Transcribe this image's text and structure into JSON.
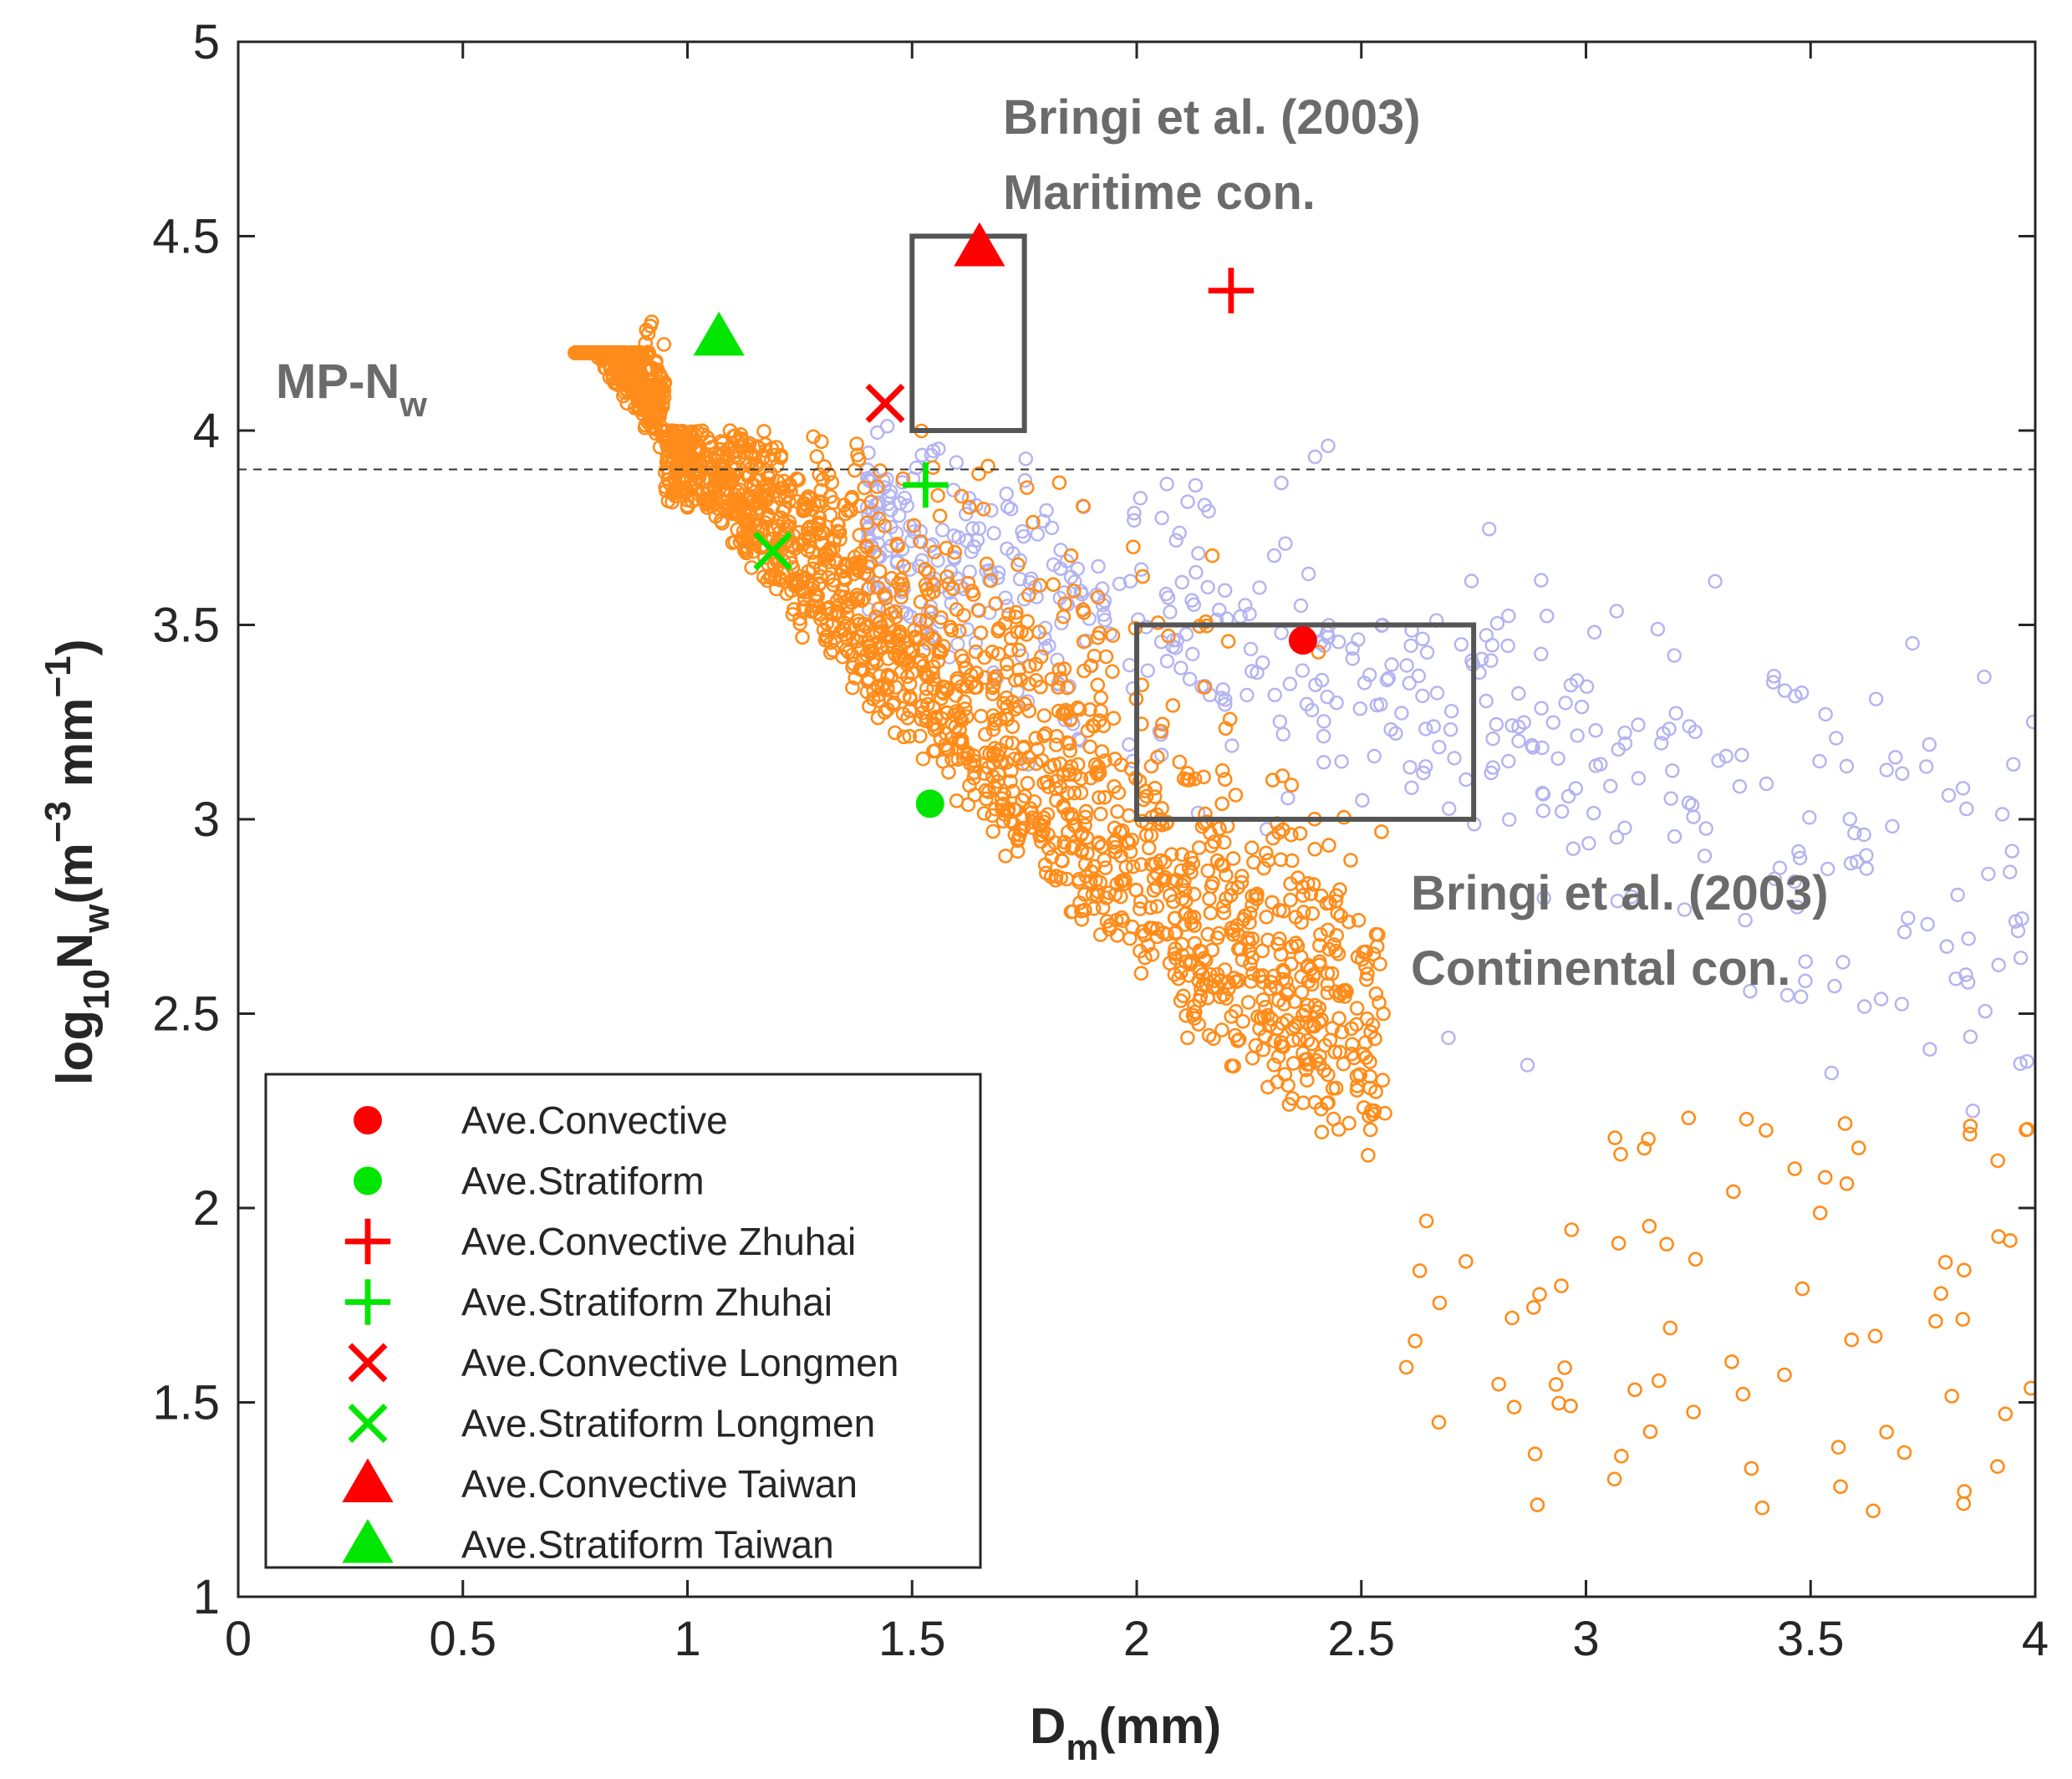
{
  "chart_data": {
    "type": "scatter",
    "title": "",
    "xlabel": "D",
    "xlabel_sub": "m",
    "xlabel_unit": "(mm)",
    "ylabel_parts": {
      "a": "log",
      "a_sub": "10",
      "b": "N",
      "b_sub": "w",
      "c": "(m",
      "c_sup": "−3",
      "d": " mm",
      "d_sup": "−1",
      "e": ")"
    },
    "xlim": [
      0,
      4
    ],
    "ylim": [
      1,
      5
    ],
    "xticks": [
      0,
      0.5,
      1,
      1.5,
      2,
      2.5,
      3,
      3.5,
      4
    ],
    "xtick_labels": [
      "0",
      "0.5",
      "1",
      "1.5",
      "2",
      "2.5",
      "3",
      "3.5",
      "4"
    ],
    "yticks": [
      1,
      1.5,
      2,
      2.5,
      3,
      3.5,
      4,
      4.5,
      5
    ],
    "ytick_labels": [
      "1",
      "1.5",
      "2",
      "2.5",
      "3",
      "3.5",
      "4",
      "4.5",
      "5"
    ],
    "reference_line": {
      "y": 3.9,
      "style": "dashed",
      "label_main": "MP-N",
      "label_sub": "w"
    },
    "regions": [
      {
        "name": "Bringi et al. (2003) Maritime con.",
        "x": [
          1.5,
          1.75
        ],
        "y": [
          4.0,
          4.5
        ],
        "label_lines": [
          "Bringi et al. (2003)",
          "Maritime con."
        ]
      },
      {
        "name": "Bringi et al. (2003) Continental con.",
        "x": [
          2.0,
          2.75
        ],
        "y": [
          3.0,
          3.5
        ],
        "label_lines": [
          "Bringi et al. (2003)",
          "Continental con."
        ]
      }
    ],
    "scatter_series": [
      {
        "name": "stratiform samples",
        "color": "#ff8c1a",
        "marker": "open-circle",
        "approx_count": 2400,
        "description_envelope": {
          "x_range": [
            0.75,
            4.0
          ],
          "lower_edge_at_x": {
            "0.8": 3.9,
            "1.0": 3.6,
            "1.5": 2.9,
            "2.0": 2.3,
            "2.5": 1.9
          }
        }
      },
      {
        "name": "convective samples",
        "color": "#b3b3f2",
        "marker": "open-circle",
        "approx_count": 500,
        "description_envelope": {
          "x_range": [
            1.3,
            4.0
          ],
          "y_center_at_x": {
            "1.5": 3.7,
            "2.0": 3.5,
            "2.5": 3.4,
            "3.0": 3.1,
            "3.5": 2.8
          }
        }
      }
    ],
    "mean_points": [
      {
        "label": "Ave.Convective",
        "x": 2.37,
        "y": 3.46,
        "marker": "filled-circle",
        "color": "#ff0000"
      },
      {
        "label": "Ave.Stratiform",
        "x": 1.54,
        "y": 3.04,
        "marker": "filled-circle",
        "color": "#00e600"
      },
      {
        "label": "Ave.Convective Zhuhai",
        "x": 2.21,
        "y": 4.36,
        "marker": "plus",
        "color": "#ff0000"
      },
      {
        "label": "Ave.Stratiform Zhuhai",
        "x": 1.53,
        "y": 3.86,
        "marker": "plus",
        "color": "#00e600"
      },
      {
        "label": "Ave.Convective Longmen",
        "x": 1.44,
        "y": 4.07,
        "marker": "x",
        "color": "#ff0000"
      },
      {
        "label": "Ave.Stratiform Longmen",
        "x": 1.19,
        "y": 3.69,
        "marker": "x",
        "color": "#00e600"
      },
      {
        "label": "Ave.Convective Taiwan",
        "x": 1.65,
        "y": 4.47,
        "marker": "triangle",
        "color": "#ff0000"
      },
      {
        "label": "Ave.Stratiform Taiwan",
        "x": 1.07,
        "y": 4.24,
        "marker": "triangle",
        "color": "#00e600"
      }
    ],
    "legend_position": "lower-left"
  }
}
